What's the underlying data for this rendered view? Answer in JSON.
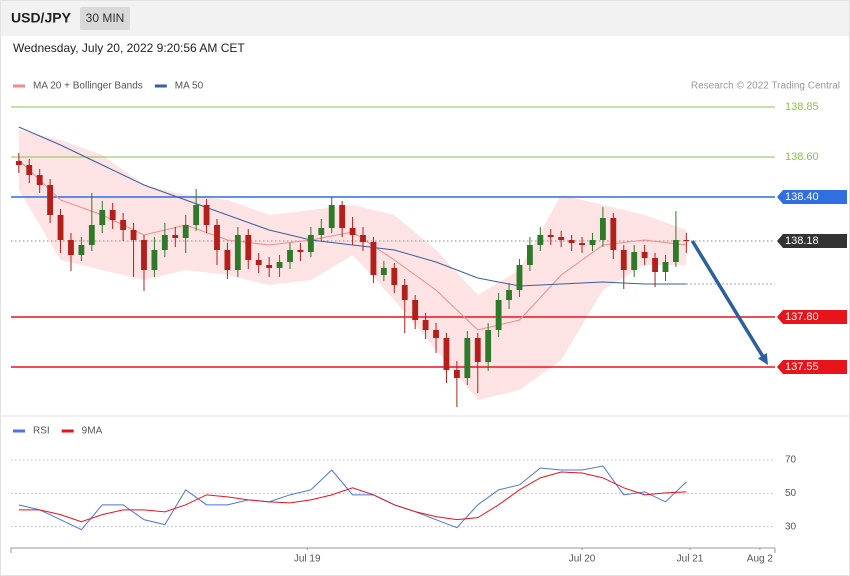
{
  "chart_data": [
    {
      "type": "candlestick",
      "title": "USD/JPY",
      "timeframe": "30 MIN",
      "subtitle": "Wednesday, July 20, 2022 9:20:56 AM CET",
      "credit": "Research © 2022 Trading Central",
      "up_color": "#2f7a2a",
      "down_color": "#b3201c",
      "xlim": [
        -1.5,
        145
      ],
      "ylim": [
        137.335,
        138.885
      ],
      "x": [
        0,
        2,
        4,
        6,
        8,
        10,
        12,
        14,
        16,
        18,
        20,
        22,
        24,
        26,
        28,
        30,
        32,
        34,
        36,
        38,
        40,
        42,
        44,
        46,
        48,
        50,
        52,
        54,
        56,
        58,
        60,
        62,
        64,
        66,
        68,
        70,
        72,
        74,
        76,
        78,
        80,
        82,
        84,
        86,
        88,
        90,
        92,
        94,
        96,
        98,
        100,
        102,
        104,
        106,
        108,
        110,
        112,
        114,
        116,
        118,
        120,
        122,
        124,
        126,
        128
      ],
      "open": [
        138.58,
        138.56,
        138.51,
        138.46,
        138.31,
        138.185,
        138.11,
        138.16,
        138.26,
        138.335,
        138.285,
        138.235,
        138.185,
        138.035,
        138.135,
        138.21,
        138.195,
        138.26,
        138.36,
        138.26,
        138.135,
        138.035,
        138.21,
        138.085,
        138.06,
        138.045,
        138.075,
        138.135,
        138.125,
        138.21,
        138.245,
        138.36,
        138.245,
        138.21,
        138.175,
        138.01,
        138.045,
        137.96,
        137.885,
        137.785,
        137.735,
        137.695,
        137.535,
        137.495,
        137.695,
        137.575,
        137.735,
        137.885,
        137.935,
        138.06,
        138.16,
        138.21,
        138.2,
        138.185,
        138.17,
        138.16,
        138.185,
        138.295,
        138.135,
        138.035,
        138.125,
        138.095,
        138.025,
        138.075,
        138.185
      ],
      "high": [
        138.62,
        138.59,
        138.54,
        138.49,
        138.34,
        138.22,
        138.2,
        138.42,
        138.38,
        138.37,
        138.32,
        138.27,
        138.21,
        138.2,
        138.27,
        138.25,
        138.31,
        138.44,
        138.39,
        138.29,
        138.17,
        138.25,
        138.24,
        138.12,
        138.1,
        138.11,
        138.17,
        138.17,
        138.25,
        138.29,
        138.4,
        138.38,
        138.3,
        138.25,
        138.2,
        138.08,
        138.07,
        137.99,
        137.91,
        137.82,
        137.77,
        137.72,
        137.58,
        137.73,
        137.72,
        137.77,
        137.92,
        137.97,
        138.09,
        138.2,
        138.25,
        138.24,
        138.23,
        138.21,
        138.2,
        138.22,
        138.35,
        138.32,
        138.16,
        138.16,
        138.16,
        138.12,
        138.11,
        138.33,
        138.22
      ],
      "low": [
        138.52,
        138.47,
        138.42,
        138.27,
        138.12,
        138.03,
        138.08,
        138.13,
        138.22,
        138.24,
        138.18,
        138.0,
        137.93,
        138.0,
        138.1,
        138.15,
        138.12,
        138.23,
        138.22,
        138.06,
        137.99,
        138.0,
        138.04,
        138.02,
        138.0,
        138.0,
        138.04,
        138.08,
        138.1,
        138.18,
        138.22,
        138.2,
        138.16,
        138.13,
        137.97,
        137.98,
        137.92,
        137.72,
        137.74,
        137.69,
        137.62,
        137.47,
        137.35,
        137.46,
        137.42,
        137.53,
        137.7,
        137.84,
        137.9,
        138.03,
        138.13,
        138.16,
        138.15,
        138.13,
        138.12,
        138.13,
        138.15,
        138.09,
        137.94,
        138.0,
        138.06,
        137.95,
        137.98,
        138.05,
        138.12
      ],
      "close": [
        138.56,
        138.51,
        138.46,
        138.31,
        138.185,
        138.11,
        138.16,
        138.26,
        138.335,
        138.285,
        138.235,
        138.185,
        138.035,
        138.135,
        138.21,
        138.195,
        138.26,
        138.36,
        138.26,
        138.135,
        138.035,
        138.21,
        138.085,
        138.06,
        138.045,
        138.075,
        138.135,
        138.125,
        138.21,
        138.245,
        138.36,
        138.245,
        138.21,
        138.175,
        138.01,
        138.045,
        137.96,
        137.885,
        137.785,
        137.735,
        137.695,
        137.535,
        137.495,
        137.695,
        137.575,
        137.735,
        137.885,
        137.935,
        138.06,
        138.16,
        138.21,
        138.2,
        138.185,
        138.17,
        138.16,
        138.185,
        138.295,
        138.135,
        138.035,
        138.125,
        138.095,
        138.025,
        138.075,
        138.185,
        138.18
      ],
      "overlays": [
        {
          "name": "MA 20 + Bollinger Bands",
          "color": "#f08c8c",
          "band_color": "#fde3e3",
          "x": [
            0,
            8,
            16,
            24,
            32,
            40,
            48,
            56,
            64,
            72,
            80,
            88,
            96,
            104,
            112,
            120,
            128
          ],
          "values": [
            138.585,
            138.385,
            138.31,
            138.21,
            138.26,
            138.185,
            138.16,
            138.185,
            138.225,
            138.085,
            137.935,
            137.735,
            137.785,
            138.01,
            138.16,
            138.185,
            138.16
          ],
          "upper": [
            138.735,
            138.685,
            138.61,
            138.46,
            138.41,
            138.385,
            138.31,
            138.335,
            138.36,
            138.31,
            138.135,
            137.91,
            138.035,
            138.41,
            138.36,
            138.31,
            138.235
          ],
          "lower": [
            138.435,
            138.085,
            138.035,
            137.985,
            138.035,
            138.01,
            137.96,
            137.985,
            138.11,
            137.885,
            137.635,
            137.385,
            137.435,
            137.585,
            137.935,
            138.06,
            138.06
          ]
        },
        {
          "name": "MA 50",
          "color": "#3a5f9f",
          "x": [
            0,
            8,
            16,
            24,
            32,
            40,
            48,
            56,
            64,
            72,
            80,
            88,
            96,
            104,
            112,
            120,
            128
          ],
          "values": [
            138.75,
            138.66,
            138.56,
            138.46,
            138.385,
            138.31,
            138.235,
            138.185,
            138.16,
            138.135,
            138.075,
            137.995,
            137.955,
            137.965,
            137.975,
            137.965,
            137.965
          ]
        }
      ],
      "levels": [
        {
          "value": 138.85,
          "color": "#8bc34a",
          "style": "text"
        },
        {
          "value": 138.6,
          "label": "138.60",
          "color": "#8bc34a",
          "style": "text"
        },
        {
          "value": 138.4,
          "label": "138.40",
          "color": "#2f6fe0",
          "style": "tag"
        },
        {
          "value": 138.18,
          "color": "#333333",
          "style": "tag",
          "dotted": true
        },
        {
          "value": 137.8,
          "label": "137.80",
          "color": "#e8141c",
          "style": "tag"
        },
        {
          "value": 137.55,
          "color": "#e8141c",
          "style": "tag"
        }
      ]
    },
    {
      "type": "line",
      "xlim": [
        -1.5,
        145
      ],
      "ylim": [
        19,
        82
      ],
      "yticks": [
        30,
        50,
        70
      ],
      "grid": true,
      "xticks": [
        {
          "value": 55.3,
          "label": "Jul 19"
        },
        {
          "value": 108,
          "label": "Jul 20"
        },
        {
          "value": 128.7,
          "label": "Jul 21"
        },
        {
          "value": 142.1,
          "label": "Aug 2"
        }
      ],
      "x": [
        0,
        4,
        8,
        12,
        16,
        20,
        24,
        28,
        32,
        36,
        40,
        44,
        48,
        52,
        56,
        60,
        64,
        68,
        72,
        76,
        80,
        84,
        88,
        92,
        96,
        100,
        104,
        108,
        112,
        116,
        120,
        124,
        128
      ],
      "series": [
        {
          "name": "RSI",
          "color": "#4f74d9",
          "values": [
            43.1,
            40.1,
            34.2,
            28.2,
            43.1,
            43.1,
            34.2,
            31.2,
            52.1,
            43.1,
            43.1,
            46.1,
            44.9,
            49.1,
            52.1,
            64.0,
            49.1,
            49.1,
            43.1,
            39.0,
            34.2,
            29.4,
            43.1,
            52.1,
            55.1,
            65.2,
            64.0,
            64.0,
            66.4,
            49.1,
            50.9,
            44.9,
            56.9
          ]
        },
        {
          "name": "9MA",
          "color": "#e8141c",
          "values": [
            40.1,
            40.1,
            37.2,
            33.0,
            37.2,
            40.1,
            40.1,
            38.9,
            43.1,
            49.1,
            47.9,
            46.1,
            44.9,
            44.3,
            46.1,
            49.1,
            53.3,
            49.1,
            43.1,
            39.0,
            36.0,
            34.2,
            35.4,
            43.1,
            52.1,
            59.3,
            62.8,
            62.2,
            59.3,
            53.3,
            49.1,
            50.3,
            50.9
          ]
        }
      ]
    }
  ]
}
